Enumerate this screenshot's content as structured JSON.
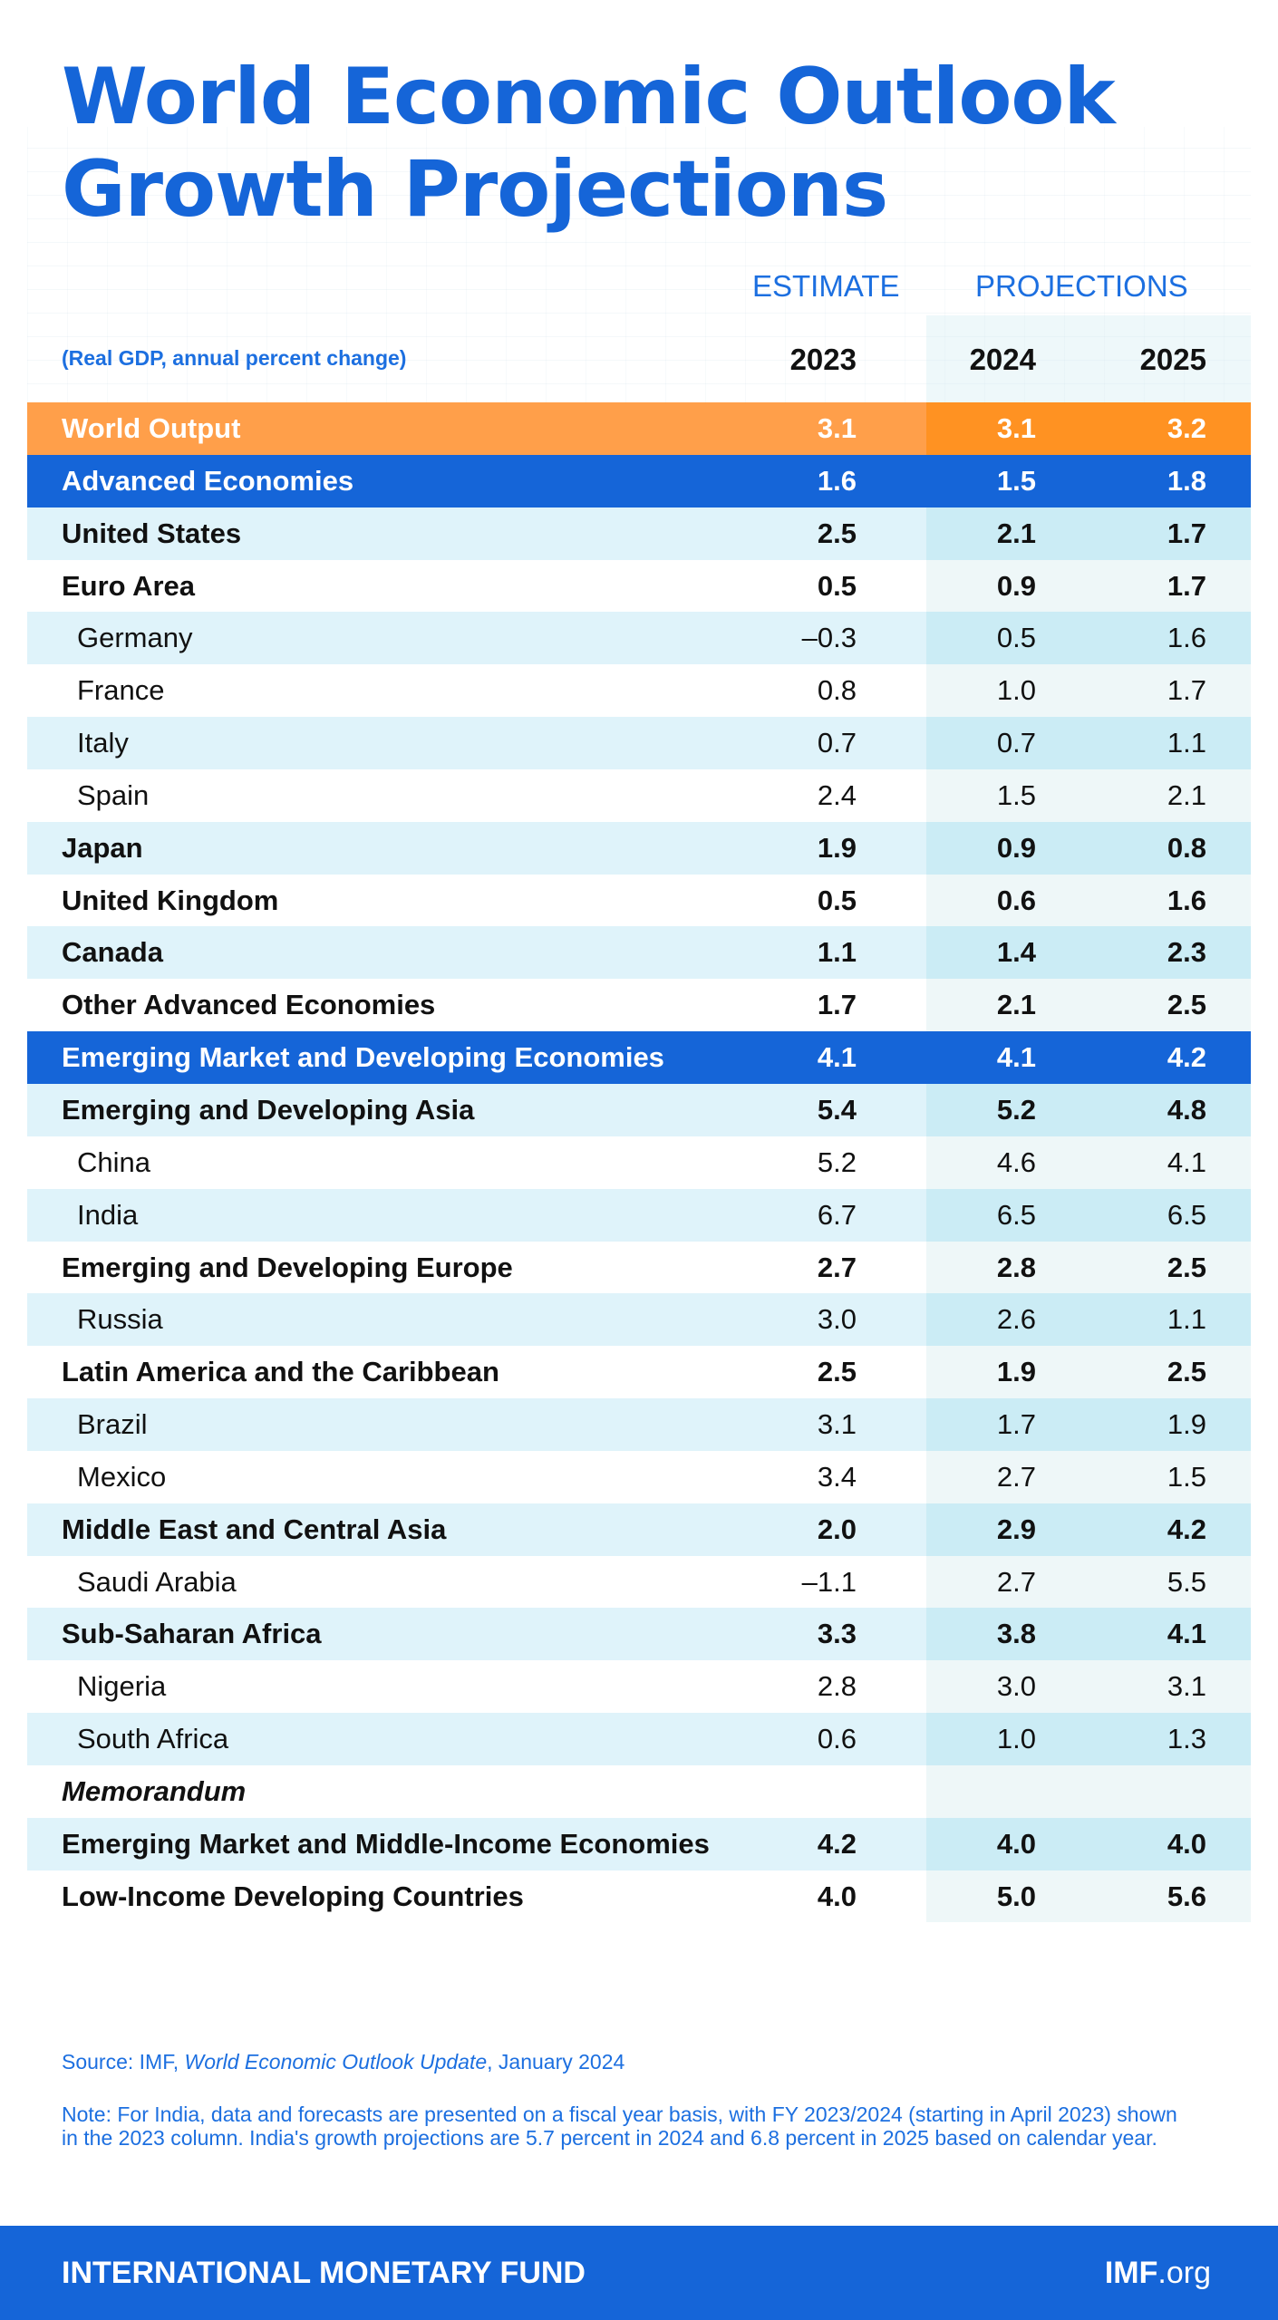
{
  "title": {
    "line1": "World Economic Outlook",
    "line2": "Growth Projections"
  },
  "header": {
    "estimate": "ESTIMATE",
    "projections": "PROJECTIONS",
    "subtitle": "(Real GDP, annual percent change)",
    "years": [
      "2023",
      "2024",
      "2025"
    ]
  },
  "rows": [
    {
      "label": "World Output",
      "v2023": "3.1",
      "v2024": "3.1",
      "v2025": "3.2",
      "style": "world"
    },
    {
      "label": "Advanced Economies",
      "v2023": "1.6",
      "v2024": "1.5",
      "v2025": "1.8",
      "style": "blue"
    },
    {
      "label": "United States",
      "v2023": "2.5",
      "v2024": "2.1",
      "v2025": "1.7",
      "style": "light"
    },
    {
      "label": "Euro Area",
      "v2023": "0.5",
      "v2024": "0.9",
      "v2025": "1.7",
      "style": "white"
    },
    {
      "label": "Germany",
      "v2023": "–0.3",
      "v2024": "0.5",
      "v2025": "1.6",
      "style": "light",
      "indent": true
    },
    {
      "label": "France",
      "v2023": "0.8",
      "v2024": "1.0",
      "v2025": "1.7",
      "style": "white",
      "indent": true
    },
    {
      "label": "Italy",
      "v2023": "0.7",
      "v2024": "0.7",
      "v2025": "1.1",
      "style": "light",
      "indent": true
    },
    {
      "label": "Spain",
      "v2023": "2.4",
      "v2024": "1.5",
      "v2025": "2.1",
      "style": "white",
      "indent": true
    },
    {
      "label": "Japan",
      "v2023": "1.9",
      "v2024": "0.9",
      "v2025": "0.8",
      "style": "light"
    },
    {
      "label": "United Kingdom",
      "v2023": "0.5",
      "v2024": "0.6",
      "v2025": "1.6",
      "style": "white"
    },
    {
      "label": "Canada",
      "v2023": "1.1",
      "v2024": "1.4",
      "v2025": "2.3",
      "style": "light"
    },
    {
      "label": "Other Advanced Economies",
      "v2023": "1.7",
      "v2024": "2.1",
      "v2025": "2.5",
      "style": "white"
    },
    {
      "label": "Emerging Market and Developing Economies",
      "v2023": "4.1",
      "v2024": "4.1",
      "v2025": "4.2",
      "style": "blue"
    },
    {
      "label": "Emerging and Developing Asia",
      "v2023": "5.4",
      "v2024": "5.2",
      "v2025": "4.8",
      "style": "light"
    },
    {
      "label": "China",
      "v2023": "5.2",
      "v2024": "4.6",
      "v2025": "4.1",
      "style": "white",
      "indent": true
    },
    {
      "label": "India",
      "v2023": "6.7",
      "v2024": "6.5",
      "v2025": "6.5",
      "style": "light",
      "indent": true
    },
    {
      "label": "Emerging and Developing Europe",
      "v2023": "2.7",
      "v2024": "2.8",
      "v2025": "2.5",
      "style": "white"
    },
    {
      "label": "Russia",
      "v2023": "3.0",
      "v2024": "2.6",
      "v2025": "1.1",
      "style": "light",
      "indent": true
    },
    {
      "label": "Latin America and the Caribbean",
      "v2023": "2.5",
      "v2024": "1.9",
      "v2025": "2.5",
      "style": "white"
    },
    {
      "label": "Brazil",
      "v2023": "3.1",
      "v2024": "1.7",
      "v2025": "1.9",
      "style": "light",
      "indent": true
    },
    {
      "label": "Mexico",
      "v2023": "3.4",
      "v2024": "2.7",
      "v2025": "1.5",
      "style": "white",
      "indent": true
    },
    {
      "label": "Middle East and Central Asia",
      "v2023": "2.0",
      "v2024": "2.9",
      "v2025": "4.2",
      "style": "light"
    },
    {
      "label": "Saudi Arabia",
      "v2023": "–1.1",
      "v2024": "2.7",
      "v2025": "5.5",
      "style": "white",
      "indent": true
    },
    {
      "label": "Sub-Saharan Africa",
      "v2023": "3.3",
      "v2024": "3.8",
      "v2025": "4.1",
      "style": "light"
    },
    {
      "label": "Nigeria",
      "v2023": "2.8",
      "v2024": "3.0",
      "v2025": "3.1",
      "style": "white",
      "indent": true
    },
    {
      "label": "South Africa",
      "v2023": "0.6",
      "v2024": "1.0",
      "v2025": "1.3",
      "style": "light",
      "indent": true
    },
    {
      "label": "Memorandum",
      "v2023": "",
      "v2024": "",
      "v2025": "",
      "style": "white",
      "memo": true
    },
    {
      "label": "Emerging Market and Middle-Income Economies",
      "v2023": "4.2",
      "v2024": "4.0",
      "v2025": "4.0",
      "style": "light"
    },
    {
      "label": "Low-Income Developing Countries",
      "v2023": "4.0",
      "v2024": "5.0",
      "v2025": "5.6",
      "style": "white"
    }
  ],
  "source": {
    "prefix": "Source: IMF, ",
    "publication": "World Economic Outlook Update",
    "suffix": ", January 2024"
  },
  "note": "Note: For India, data and forecasts are presented on a fiscal year basis, with FY 2023/2024 (starting in April 2023) shown in the 2023 column. India's growth projections are 5.7 percent in 2024 and 6.8 percent in 2025 based on calendar year.",
  "footer": {
    "org": "INTERNATIONAL MONETARY FUND",
    "site_bold": "IMF",
    "site_rest": ".org"
  },
  "colors": {
    "brand_blue": "#1565d8",
    "world_orange": "#ff9f4a",
    "light_row": "#dff3fa"
  }
}
